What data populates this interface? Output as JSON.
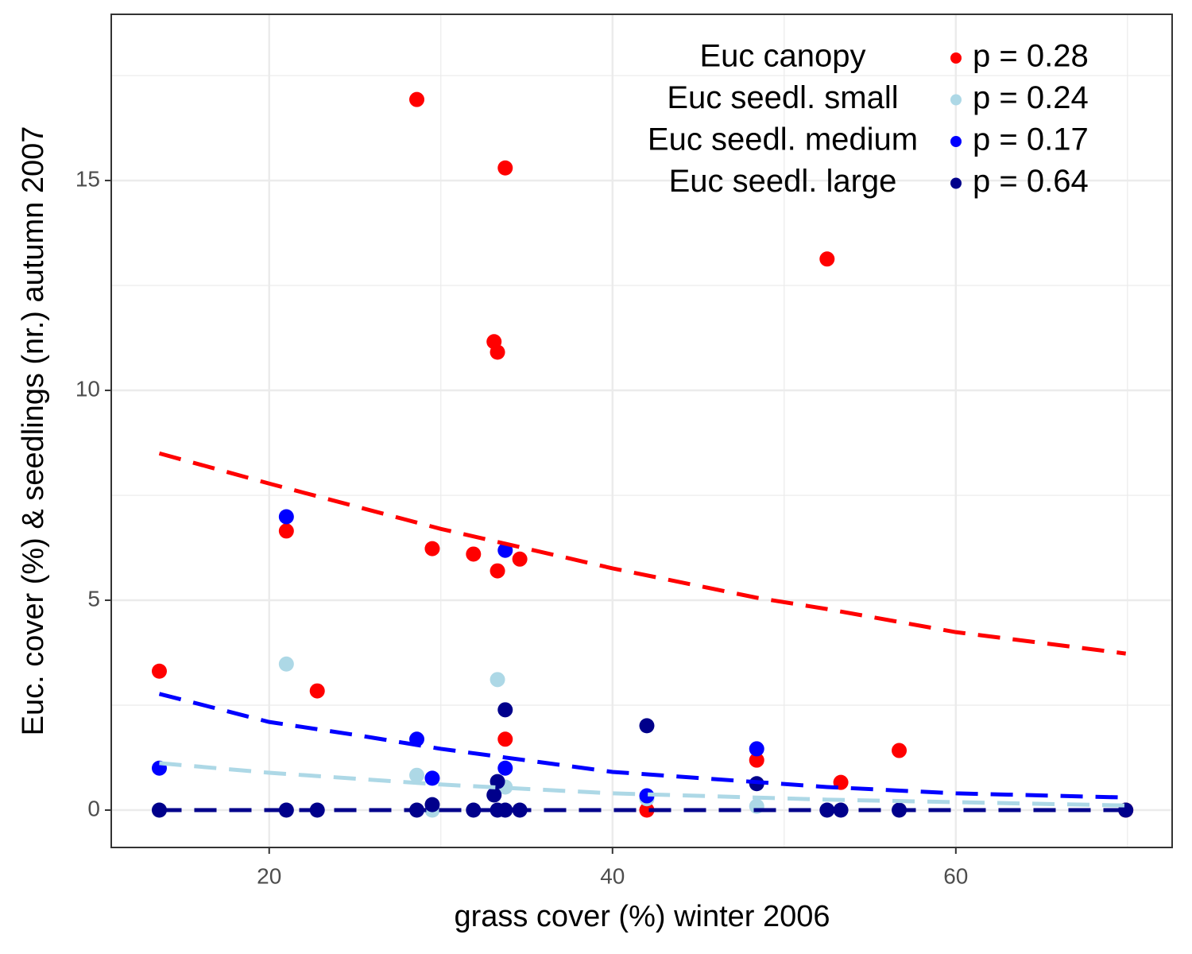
{
  "chart_data": {
    "type": "scatter",
    "xlabel": "grass cover (%) winter 2006",
    "ylabel": "Euc. cover (%) & seedlings (nr.) autumn 2007",
    "xlim": [
      10.8,
      72.6
    ],
    "ylim": [
      -0.89,
      18.96
    ],
    "xticks": [
      20,
      40,
      60
    ],
    "yticks": [
      0,
      5,
      10,
      15
    ],
    "xminor": [
      30,
      50,
      70
    ],
    "yminor": [
      2.5,
      7.5,
      12.5,
      17.5
    ],
    "grid": true,
    "legend": "top-right",
    "series": [
      {
        "name": "Euc canopy",
        "legend_label": "p = 0.28",
        "color": "#ff0000",
        "x": [
          13.6,
          21.0,
          22.8,
          28.6,
          29.5,
          31.9,
          33.1,
          33.3,
          33.3,
          33.75,
          33.75,
          34.6,
          42.0,
          48.4,
          52.5,
          53.3,
          56.7,
          69.9
        ],
        "values": [
          3.31,
          6.65,
          2.84,
          16.93,
          6.23,
          6.1,
          11.16,
          10.91,
          5.7,
          15.3,
          1.69,
          5.98,
          0,
          1.19,
          13.13,
          0.66,
          1.42,
          0
        ],
        "fit": {
          "x": [
            13.6,
            20,
            30,
            40,
            48.4,
            52.5,
            60,
            69.9
          ],
          "y": [
            8.5,
            7.78,
            6.7,
            5.76,
            5.06,
            4.79,
            4.24,
            3.73
          ]
        }
      },
      {
        "name": "Euc seedl. small",
        "legend_label": "p = 0.24",
        "color": "#add8e6",
        "x": [
          13.6,
          21.0,
          28.6,
          29.5,
          33.3,
          33.75,
          42.0,
          48.4
        ],
        "values": [
          0,
          3.48,
          0.83,
          0,
          3.11,
          0.55,
          0.27,
          0.09
        ],
        "fit": {
          "x": [
            13.6,
            20,
            30,
            40,
            52.5,
            69.9
          ],
          "y": [
            1.12,
            0.89,
            0.61,
            0.4,
            0.25,
            0.11
          ]
        }
      },
      {
        "name": "Euc seedl. medium",
        "legend_label": "p = 0.17",
        "color": "#0000ff",
        "x": [
          13.6,
          21.0,
          28.6,
          29.5,
          33.75,
          33.75,
          42.0,
          48.4
        ],
        "values": [
          1.0,
          6.99,
          1.69,
          0.76,
          6.19,
          1.0,
          0.34,
          1.46
        ],
        "fit": {
          "x": [
            13.6,
            20,
            25.2,
            30,
            40,
            52.5,
            60,
            69.9
          ],
          "y": [
            2.77,
            2.1,
            1.78,
            1.46,
            0.91,
            0.55,
            0.4,
            0.3
          ]
        }
      },
      {
        "name": "Euc seedl. large",
        "legend_label": "p = 0.64",
        "color": "#00008b",
        "x": [
          13.6,
          21.0,
          22.8,
          28.6,
          29.5,
          31.9,
          33.1,
          33.3,
          33.3,
          33.75,
          33.75,
          34.6,
          42.0,
          48.4,
          52.5,
          53.3,
          56.7,
          69.9
        ],
        "values": [
          0,
          0,
          0,
          0,
          0.13,
          0,
          0.36,
          0.68,
          0,
          2.39,
          0,
          0,
          2.01,
          0.63,
          0,
          0,
          0,
          0
        ],
        "fit": {
          "x": [
            13.6,
            69.9
          ],
          "y": [
            0,
            0
          ]
        }
      }
    ]
  }
}
